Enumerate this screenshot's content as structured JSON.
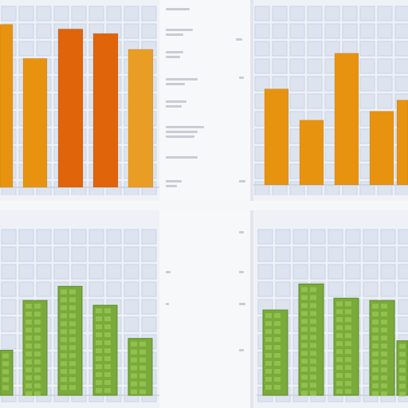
{
  "chart_data": [
    {
      "type": "bar",
      "categories": [
        "",
        "",
        "",
        "",
        ""
      ],
      "values": [
        72,
        57,
        70,
        68,
        61
      ],
      "ylim": [
        0,
        80
      ],
      "colors": [
        "#e8930f",
        "#e8930f",
        "#e0640a",
        "#e0640a",
        "#ea9d24"
      ],
      "grid": true
    },
    {
      "type": "bar",
      "categories": [
        "",
        "",
        "",
        "",
        ""
      ],
      "values": [
        43,
        29,
        59,
        33,
        38
      ],
      "ylim": [
        0,
        80
      ],
      "colors": [
        "#e8930f",
        "#e8930f",
        "#e8930f",
        "#e8930f",
        "#e8930f"
      ],
      "grid": true
    },
    {
      "type": "bar",
      "categories": [
        "",
        "",
        "",
        "",
        ""
      ],
      "values": [
        19,
        40,
        46,
        38,
        24
      ],
      "ylim": [
        0,
        70
      ],
      "colors": [
        "#7aaa3a",
        "#7aaa3a",
        "#7aaa3a",
        "#7aaa3a",
        "#7aaa3a"
      ],
      "grid": true
    },
    {
      "type": "bar",
      "categories": [
        "",
        "",
        "",
        "",
        ""
      ],
      "values": [
        36,
        47,
        41,
        40,
        23
      ],
      "ylim": [
        0,
        70
      ],
      "colors": [
        "#7aaa3a",
        "#7aaa3a",
        "#7aaa3a",
        "#7aaa3a",
        "#7aaa3a"
      ],
      "grid": true
    }
  ],
  "theme": {
    "grid_color": "#c8d3e6",
    "grid_bg": "#dde4ef",
    "orange": "#e8930f",
    "dark_orange": "#e0640a",
    "green": "#7aaa3a",
    "placeholder_line": "#c9ccd3"
  }
}
